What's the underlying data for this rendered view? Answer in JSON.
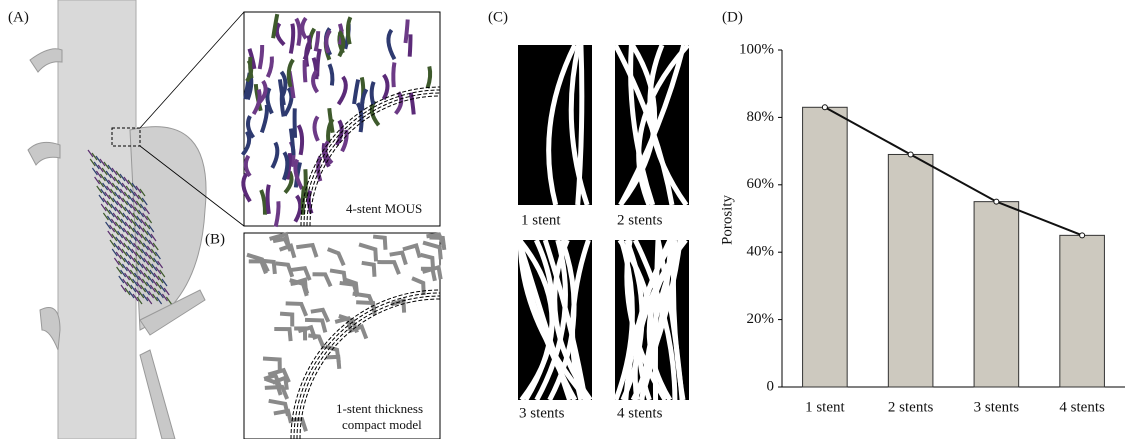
{
  "panels": {
    "a": {
      "label": "(A)"
    },
    "a_inset": {
      "caption": "4-stent MOUS"
    },
    "b": {
      "label": "(B)",
      "caption_lines": [
        "1-stent thickness",
        "compact model"
      ]
    },
    "c": {
      "label": "(C)",
      "captions": [
        "1 stent",
        "2 stents",
        "3 stents",
        "4 stents"
      ]
    },
    "d": {
      "label": "(D)"
    }
  },
  "chart_data": {
    "type": "bar",
    "y_label": "Porosity",
    "categories": [
      "1 stent",
      "2 stents",
      "3 stents",
      "4 stents"
    ],
    "values": [
      83,
      69,
      55,
      45
    ],
    "color": "#cdc9bf",
    "edge_color": "#333333",
    "line_overlay": true,
    "line_color": "#111111",
    "ylim": [
      0,
      100
    ],
    "yticks": [
      0,
      {
        "value": 20,
        "label": "20%"
      },
      {
        "value": 40,
        "label": "40%"
      },
      {
        "value": 60,
        "label": "60%"
      },
      {
        "value": 80,
        "label": "80%"
      },
      {
        "value": 100,
        "label": "100%"
      }
    ],
    "grid": false
  }
}
